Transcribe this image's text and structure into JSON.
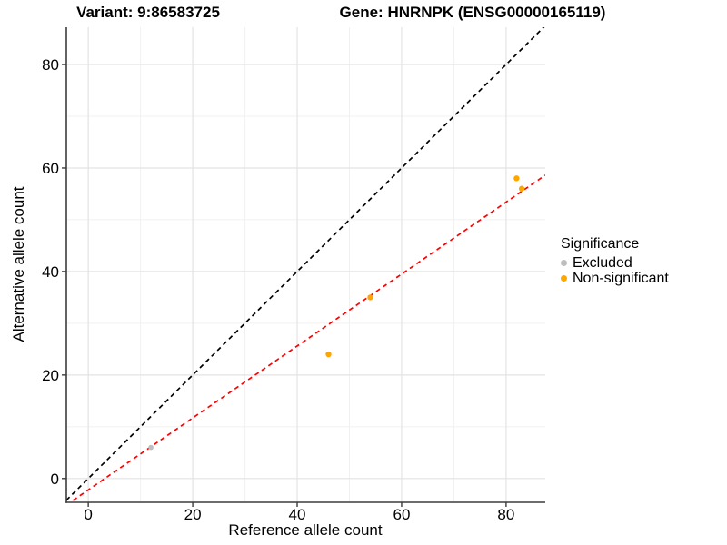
{
  "chart_data": {
    "type": "scatter",
    "title_left": "Variant: 9:86583725",
    "title_right": "Gene: HNRNPK (ENSG00000165119)",
    "xlabel": "Reference allele count",
    "ylabel": "Alternative allele count",
    "xlim": [
      -4.2,
      87.5
    ],
    "ylim": [
      -4.6,
      87.2
    ],
    "xticks": [
      0,
      20,
      40,
      60,
      80
    ],
    "yticks": [
      0,
      20,
      40,
      60,
      80
    ],
    "xminor": [
      10,
      30,
      50,
      70
    ],
    "yminor": [
      10,
      30,
      50,
      70
    ],
    "grid": {
      "major_color": "#E3E3E3",
      "minor_color": "#F1F1F1",
      "on": true
    },
    "axis_color": "#3C3C3C",
    "tick_label_color": "#000000",
    "series": [
      {
        "name": "Excluded",
        "color": "#BEBEBE",
        "radius": 2.8,
        "points": [
          [
            12,
            6
          ]
        ]
      },
      {
        "name": "Non-significant",
        "color": "#FFA500",
        "radius": 3.2,
        "points": [
          [
            46,
            24
          ],
          [
            54,
            35
          ],
          [
            82,
            58
          ],
          [
            83,
            56
          ]
        ]
      }
    ],
    "lines": [
      {
        "name": "identity-line",
        "slope": 1,
        "intercept": 0,
        "color": "#000000",
        "dash": "5,4"
      },
      {
        "name": "regression-line",
        "slope": 0.695,
        "intercept": -2.2,
        "color": "#FF0000",
        "dash": "5,4"
      }
    ],
    "legend": {
      "title": "Significance",
      "position": "right",
      "items": [
        {
          "label": "Excluded",
          "color": "#BEBEBE"
        },
        {
          "label": "Non-significant",
          "color": "#FFA500"
        }
      ]
    }
  }
}
